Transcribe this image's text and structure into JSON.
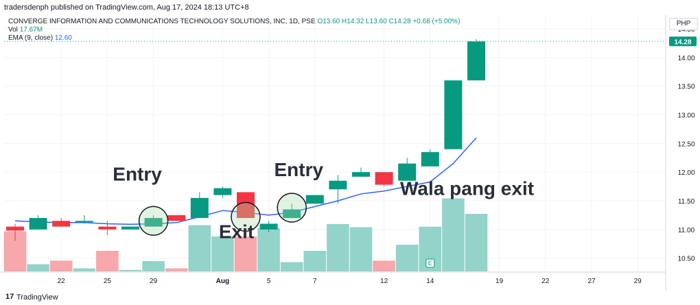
{
  "header": {
    "publisher": "tradersdenph published on TradingView.com, Aug 17, 2024 18:13 UTC+8"
  },
  "legend": {
    "symbol": "CONVERGE INFORMATION AND COMMUNICATIONS TECHNOLOGY SOLUTIONS, INC, 1D, PSE",
    "o": "O13.60",
    "h": "H14.32",
    "l": "L13.60",
    "c": "C14.28",
    "chg": "+0.68 (+5.00%)",
    "vol_label": "Vol",
    "vol_value": "17.67M",
    "ema_label": "EMA (9, close)",
    "ema_value": "12.60"
  },
  "currency": "PHP",
  "last_price_label": "14.28",
  "footer": {
    "brand": "TradingView"
  },
  "colors": {
    "up": "#089981",
    "down": "#f23645",
    "vol_up": "#93d3ca",
    "vol_down": "#f7a8ac",
    "ema": "#2962ff",
    "grid": "#f0f3fa"
  },
  "chart_data": {
    "type": "candlestick",
    "ylim": [
      10.4,
      14.5
    ],
    "y_ticks": [
      "14.50",
      "14.00",
      "13.50",
      "13.00",
      "12.50",
      "12.00",
      "11.50",
      "11.00",
      "10.50"
    ],
    "x_tick_labels": [
      {
        "label": "22",
        "i": 2
      },
      {
        "label": "25",
        "i": 4
      },
      {
        "label": "29",
        "i": 6
      },
      {
        "label": "Aug",
        "i": 9
      },
      {
        "label": "5",
        "i": 11
      },
      {
        "label": "7",
        "i": 13
      },
      {
        "label": "12",
        "i": 16
      },
      {
        "label": "14",
        "i": 18
      },
      {
        "label": "19",
        "i": 21
      },
      {
        "label": "22",
        "i": 23
      },
      {
        "label": "27",
        "i": 25
      },
      {
        "label": "29",
        "i": 27
      }
    ],
    "candles": [
      {
        "o": 11.05,
        "h": 11.1,
        "l": 10.8,
        "c": 10.98
      },
      {
        "o": 11.0,
        "h": 11.25,
        "l": 11.0,
        "c": 11.2
      },
      {
        "o": 11.15,
        "h": 11.2,
        "l": 11.05,
        "c": 11.05
      },
      {
        "o": 11.15,
        "h": 11.25,
        "l": 11.1,
        "c": 11.15
      },
      {
        "o": 11.05,
        "h": 11.15,
        "l": 10.9,
        "c": 11.0
      },
      {
        "o": 11.0,
        "h": 11.05,
        "l": 11.0,
        "c": 11.05
      },
      {
        "o": 11.05,
        "h": 11.25,
        "l": 11.05,
        "c": 11.2
      },
      {
        "o": 11.25,
        "h": 11.25,
        "l": 11.15,
        "c": 11.15
      },
      {
        "o": 11.2,
        "h": 11.65,
        "l": 11.2,
        "c": 11.55
      },
      {
        "o": 11.6,
        "h": 11.75,
        "l": 11.55,
        "c": 11.72
      },
      {
        "o": 11.65,
        "h": 11.65,
        "l": 11.2,
        "c": 11.2
      },
      {
        "o": 11.0,
        "h": 11.15,
        "l": 10.95,
        "c": 11.1
      },
      {
        "o": 11.2,
        "h": 11.45,
        "l": 11.2,
        "c": 11.35
      },
      {
        "o": 11.45,
        "h": 11.6,
        "l": 11.45,
        "c": 11.6
      },
      {
        "o": 11.7,
        "h": 11.95,
        "l": 11.45,
        "c": 11.85
      },
      {
        "o": 11.92,
        "h": 12.08,
        "l": 11.92,
        "c": 12.0
      },
      {
        "o": 12.0,
        "h": 12.0,
        "l": 11.75,
        "c": 11.78
      },
      {
        "o": 11.85,
        "h": 12.25,
        "l": 11.85,
        "c": 12.15
      },
      {
        "o": 12.1,
        "h": 12.4,
        "l": 12.1,
        "c": 12.35
      },
      {
        "o": 12.4,
        "h": 13.6,
        "l": 12.4,
        "c": 13.6
      },
      {
        "o": 13.6,
        "h": 14.32,
        "l": 13.6,
        "c": 14.28
      }
    ],
    "volume": {
      "max": 1.0,
      "values": [
        0.78,
        0.14,
        0.21,
        0.06,
        0.4,
        0.03,
        0.2,
        0.06,
        0.9,
        0.68,
        0.68,
        0.84,
        0.18,
        0.4,
        0.92,
        0.86,
        0.21,
        0.52,
        0.87,
        1.42,
        1.12
      ],
      "scale_max": 1.6
    },
    "ema": [
      11.15,
      11.13,
      11.12,
      11.12,
      11.1,
      11.09,
      11.1,
      11.12,
      11.22,
      11.33,
      11.3,
      11.25,
      11.3,
      11.4,
      11.5,
      11.62,
      11.67,
      11.75,
      11.83,
      12.15,
      12.6
    ],
    "annotations": [
      {
        "text": "Entry",
        "i": 5.3,
        "y": 11.85
      },
      {
        "text": "Exit",
        "i": 9.6,
        "y": 10.85
      },
      {
        "text": "Entry",
        "i": 12.3,
        "y": 11.93
      },
      {
        "text": "Wala pang exit",
        "i": 19.6,
        "y": 11.6
      }
    ],
    "circles": [
      {
        "i": 6,
        "y": 11.15
      },
      {
        "i": 10,
        "y": 11.22
      },
      {
        "i": 12,
        "y": 11.38
      }
    ]
  }
}
